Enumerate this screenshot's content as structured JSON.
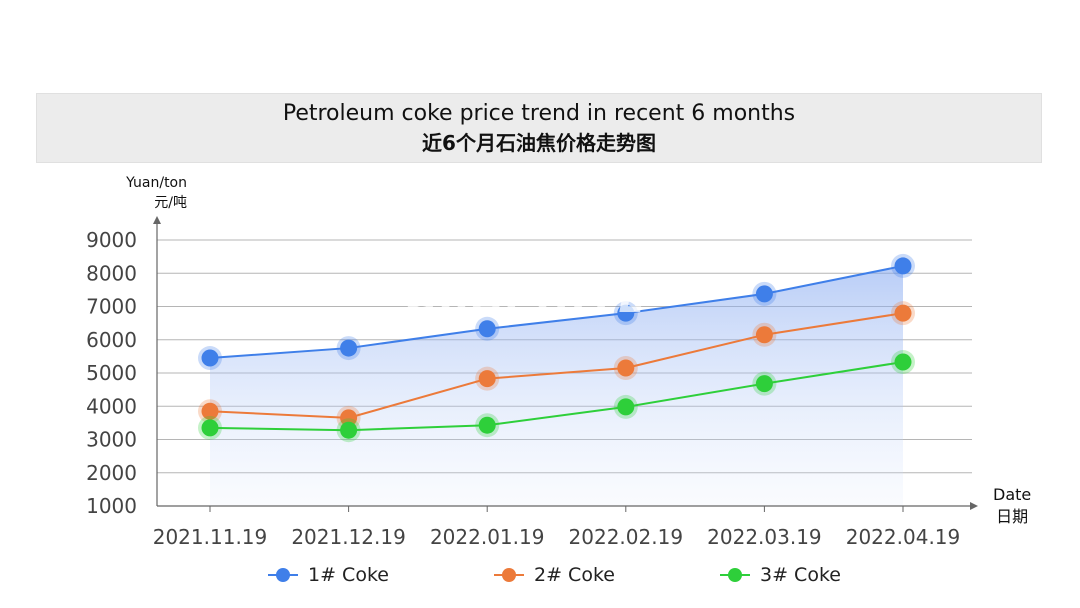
{
  "chart_data": {
    "type": "line",
    "title": "Petroleum coke price trend in recent 6 months",
    "subtitle": "近6个月石油焦价格走势图",
    "ylabel": [
      "Yuan/ton",
      "元/吨"
    ],
    "xlabel": [
      "Date",
      "日期"
    ],
    "categories": [
      "2021.11.19",
      "2021.12.19",
      "2022.01.19",
      "2022.02.19",
      "2022.03.19",
      "2022.04.19"
    ],
    "ylim": [
      1000,
      9000
    ],
    "yticks": [
      "1000",
      "2000",
      "3000",
      "4000",
      "5000",
      "6000",
      "7000",
      "8000",
      "9000"
    ],
    "grid": true,
    "legend_position": "bottom",
    "series": [
      {
        "name": "1# Coke",
        "color": "#3f7fe9",
        "values": [
          5450,
          5750,
          6330,
          6800,
          7380,
          8220
        ],
        "area_fill": true
      },
      {
        "name": "2# Coke",
        "color": "#ec7a3a",
        "values": [
          3850,
          3650,
          4830,
          5150,
          6150,
          6800
        ]
      },
      {
        "name": "3# Coke",
        "color": "#2ecf3a",
        "values": [
          3350,
          3280,
          3430,
          3980,
          4680,
          5330
        ]
      }
    ]
  },
  "watermark": "GRAPHITE"
}
